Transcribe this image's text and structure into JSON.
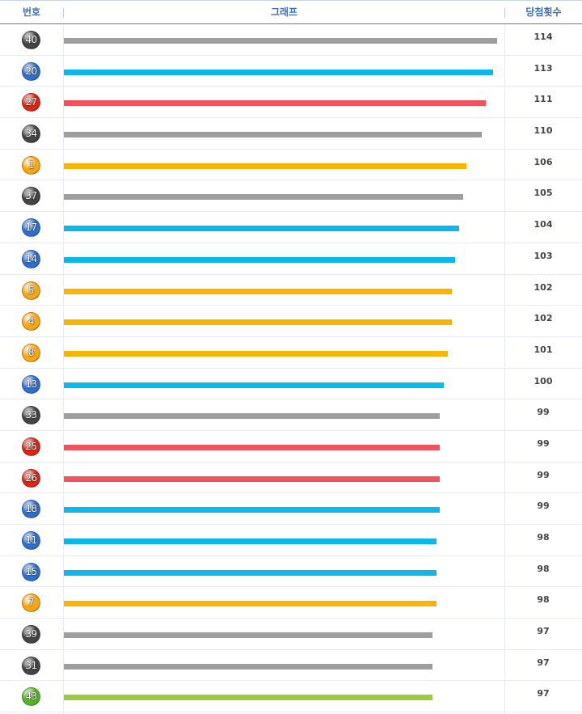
{
  "header": {
    "number": "번호",
    "graph": "그래프",
    "count": "당첨횟수"
  },
  "colors": {
    "gray": "#9e9e9e",
    "blue": "#0bb8ec",
    "red": "#f0535e",
    "yellow": "#f8b500",
    "green": "#9ccc3c",
    "ball_yellow": "#f5a614",
    "ball_blue": "#2f6fcf",
    "ball_red": "#d9271a",
    "ball_gray": "#444444",
    "ball_green": "#4fb81f",
    "accent": "#1f8fe0"
  },
  "chart_data": {
    "type": "bar",
    "orientation": "horizontal",
    "xlim": [
      0,
      114
    ],
    "rows": [
      {
        "number": "40",
        "count": 114,
        "color": "gray"
      },
      {
        "number": "20",
        "count": 113,
        "color": "blue"
      },
      {
        "number": "27",
        "count": 111,
        "color": "red"
      },
      {
        "number": "34",
        "count": 110,
        "color": "gray"
      },
      {
        "number": "1",
        "count": 106,
        "color": "yellow"
      },
      {
        "number": "37",
        "count": 105,
        "color": "gray"
      },
      {
        "number": "17",
        "count": 104,
        "color": "blue"
      },
      {
        "number": "14",
        "count": 103,
        "color": "blue"
      },
      {
        "number": "5",
        "count": 102,
        "color": "yellow"
      },
      {
        "number": "4",
        "count": 102,
        "color": "yellow"
      },
      {
        "number": "8",
        "count": 101,
        "color": "yellow"
      },
      {
        "number": "13",
        "count": 100,
        "color": "blue"
      },
      {
        "number": "33",
        "count": 99,
        "color": "gray"
      },
      {
        "number": "25",
        "count": 99,
        "color": "red"
      },
      {
        "number": "26",
        "count": 99,
        "color": "red"
      },
      {
        "number": "18",
        "count": 99,
        "color": "blue"
      },
      {
        "number": "11",
        "count": 98,
        "color": "blue"
      },
      {
        "number": "15",
        "count": 98,
        "color": "blue"
      },
      {
        "number": "7",
        "count": 98,
        "color": "yellow"
      },
      {
        "number": "39",
        "count": 97,
        "color": "gray"
      },
      {
        "number": "31",
        "count": 97,
        "color": "gray"
      },
      {
        "number": "43",
        "count": 97,
        "color": "green"
      }
    ]
  }
}
